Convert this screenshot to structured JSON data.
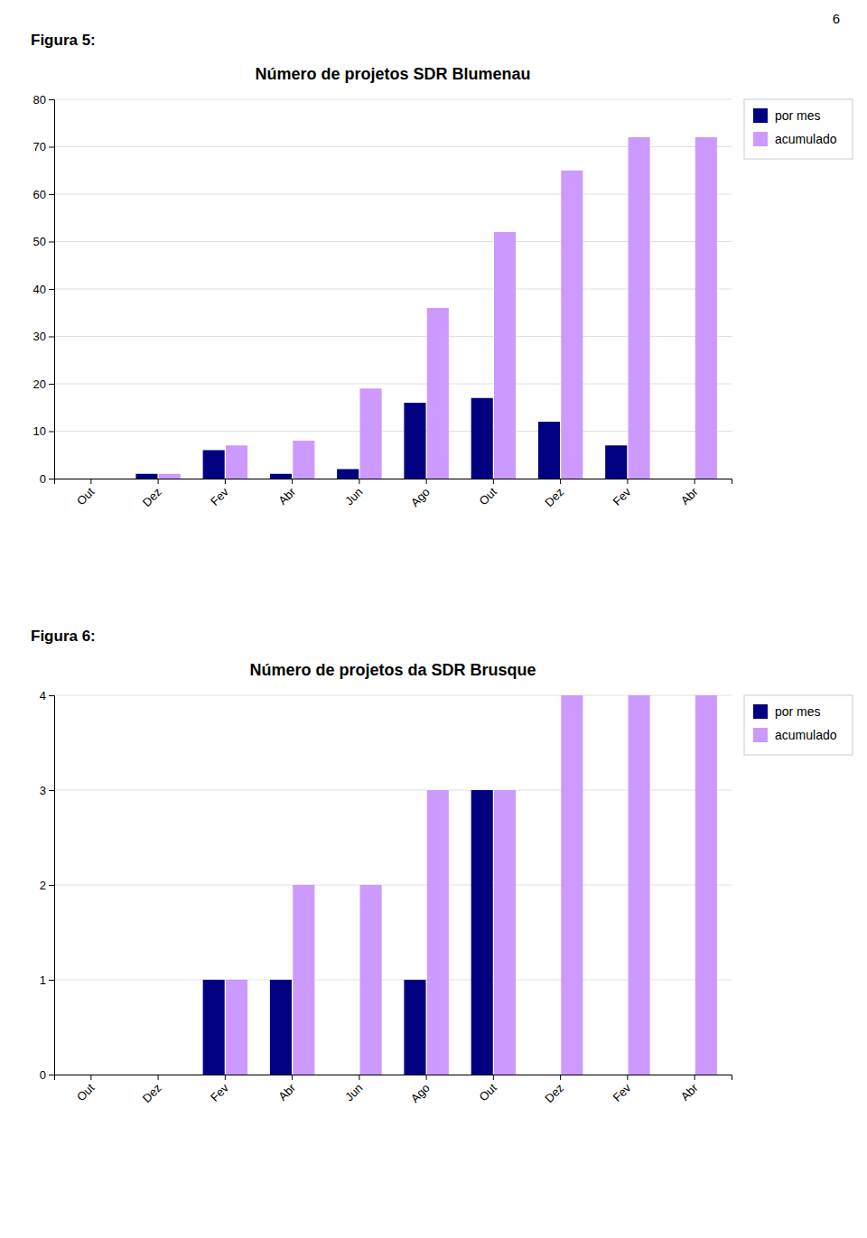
{
  "page_number": "6",
  "figure_labels": [
    "Figura 5:",
    "Figura 6:"
  ],
  "chart_data": [
    {
      "type": "bar",
      "title": "Número de projetos SDR Blumenau",
      "categories": [
        "Out",
        "Dez",
        "Fev",
        "Abr",
        "Jun",
        "Ago",
        "Out",
        "Dez",
        "Fev",
        "Abr"
      ],
      "series": [
        {
          "name": "por mes",
          "color": "#000080",
          "values": [
            0,
            1,
            6,
            1,
            2,
            16,
            17,
            12,
            7,
            0
          ]
        },
        {
          "name": "acumulado",
          "color": "#CC99FF",
          "values": [
            0,
            1,
            7,
            8,
            19,
            36,
            52,
            65,
            72,
            72
          ]
        }
      ],
      "ylim": [
        0,
        80
      ],
      "yticks": [
        0,
        10,
        20,
        30,
        40,
        50,
        60,
        70,
        80
      ],
      "grid": true,
      "legend": "upper right"
    },
    {
      "type": "bar",
      "title": "Número de projetos da SDR Brusque",
      "categories": [
        "Out",
        "Dez",
        "Fev",
        "Abr",
        "Jun",
        "Ago",
        "Out",
        "Dez",
        "Fev",
        "Abr"
      ],
      "series": [
        {
          "name": "por mes",
          "color": "#000080",
          "values": [
            0,
            0,
            1,
            1,
            0,
            1,
            3,
            0,
            0,
            0
          ]
        },
        {
          "name": "acumulado",
          "color": "#CC99FF",
          "values": [
            0,
            0,
            1,
            2,
            2,
            3,
            3,
            4,
            4,
            4
          ]
        }
      ],
      "ylim": [
        0,
        4
      ],
      "yticks": [
        0,
        1,
        2,
        3,
        4
      ],
      "grid": true,
      "legend": "upper right"
    }
  ]
}
